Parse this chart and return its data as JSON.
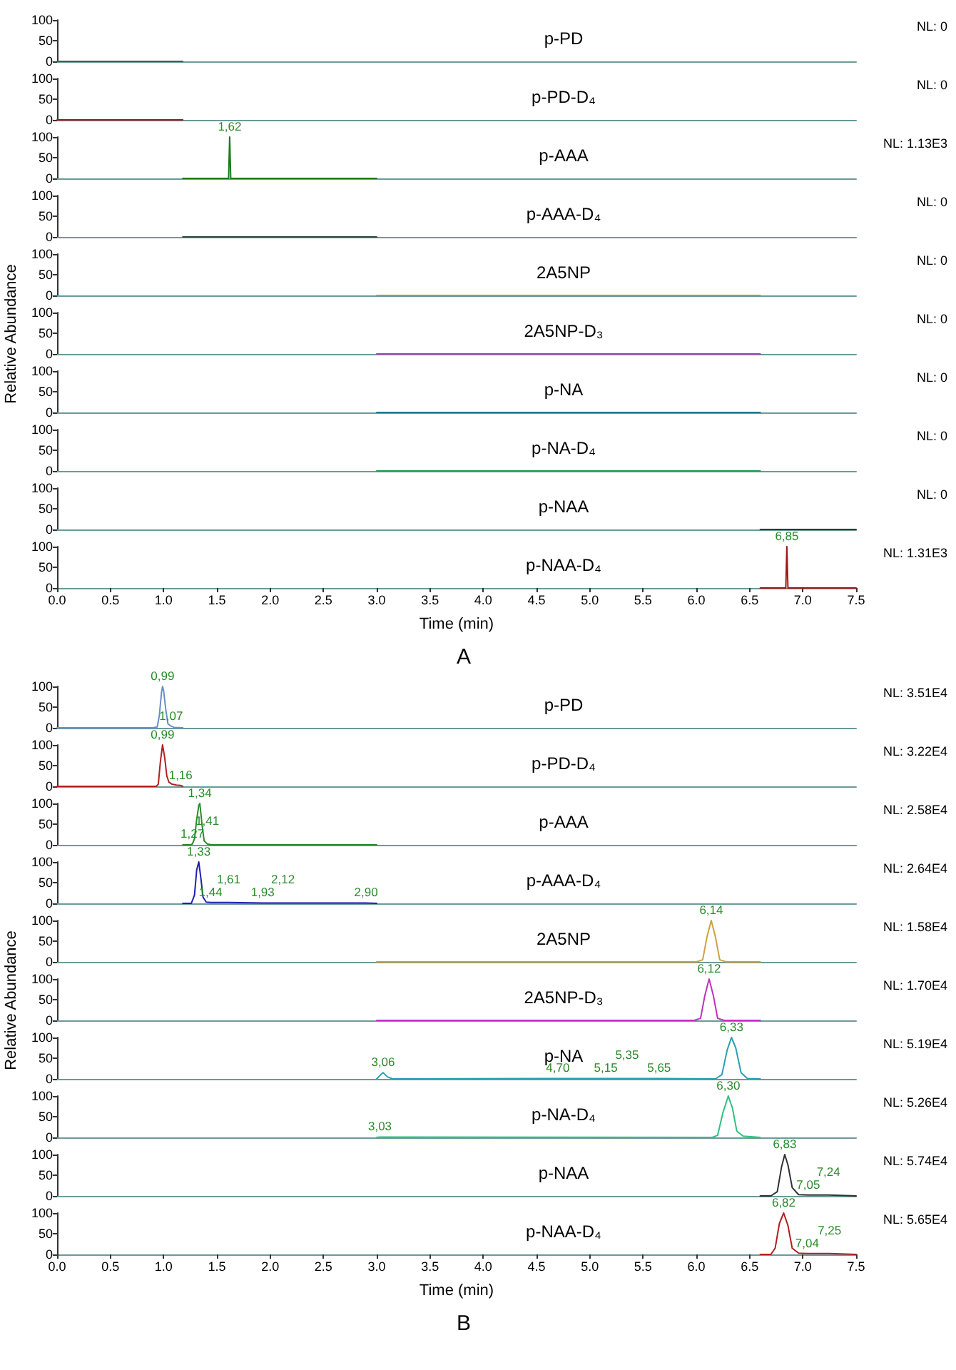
{
  "chart_data": [
    {
      "type": "line",
      "title": "p-PD",
      "x": [
        0,
        1.18
      ],
      "series": [
        {
          "color": "#555555",
          "values": [
            0,
            0
          ]
        }
      ],
      "xlim": [
        0,
        7.5
      ],
      "ylim": [
        0,
        100
      ],
      "yticks": [
        0,
        50,
        100
      ],
      "tick_labels": "y",
      "annotations": [
        "NL: 0"
      ]
    },
    {
      "type": "line",
      "title": "p-PD-D₄",
      "x": [
        0,
        1.18
      ],
      "series": [
        {
          "color": "#a01818",
          "values": [
            0,
            0
          ]
        }
      ],
      "xlim": [
        0,
        7.5
      ],
      "ylim": [
        0,
        100
      ],
      "yticks": [
        0,
        50,
        100
      ],
      "tick_labels": "y",
      "annotations": [
        "NL: 0"
      ]
    },
    {
      "type": "line",
      "title": "p-AAA",
      "x": [
        1.18,
        1.61,
        1.62,
        1.63,
        3.0
      ],
      "series": [
        {
          "color": "#1a7a1a",
          "values": [
            0,
            0,
            100,
            0,
            0
          ]
        }
      ],
      "xlim": [
        0,
        7.5
      ],
      "ylim": [
        0,
        100
      ],
      "yticks": [
        0,
        50,
        100
      ],
      "tick_labels": "y",
      "annotations": [
        "NL: 1.13E3",
        {
          "text": "1,62",
          "x": 1.62,
          "y": 100
        }
      ]
    },
    {
      "type": "line",
      "title": "p-AAA-D₄",
      "x": [
        1.18,
        3.0
      ],
      "series": [
        {
          "color": "#3a4a3a",
          "values": [
            0,
            0
          ]
        }
      ],
      "xlim": [
        0,
        7.5
      ],
      "ylim": [
        0,
        100
      ],
      "yticks": [
        0,
        50,
        100
      ],
      "tick_labels": "y",
      "annotations": [
        "NL: 0"
      ]
    },
    {
      "type": "line",
      "title": "2A5NP",
      "x": [
        3.0,
        6.6
      ],
      "series": [
        {
          "color": "#b8962e",
          "values": [
            0,
            0
          ]
        }
      ],
      "xlim": [
        0,
        7.5
      ],
      "ylim": [
        0,
        100
      ],
      "yticks": [
        0,
        50,
        100
      ],
      "tick_labels": "y",
      "annotations": [
        "NL: 0"
      ]
    },
    {
      "type": "line",
      "title": "2A5NP-D₃",
      "ylabel": "Relative Abundance",
      "x": [
        3.0,
        6.6
      ],
      "series": [
        {
          "color": "#b040b0",
          "values": [
            0,
            0
          ]
        }
      ],
      "xlim": [
        0,
        7.5
      ],
      "ylim": [
        0,
        100
      ],
      "yticks": [
        0,
        50,
        100
      ],
      "tick_labels": "y",
      "annotations": [
        "NL: 0"
      ]
    },
    {
      "type": "line",
      "title": "p-NA",
      "x": [
        3.0,
        6.6
      ],
      "series": [
        {
          "color": "#1a7a8a",
          "values": [
            0,
            0
          ]
        }
      ],
      "xlim": [
        0,
        7.5
      ],
      "ylim": [
        0,
        100
      ],
      "yticks": [
        0,
        50,
        100
      ],
      "tick_labels": "y",
      "annotations": [
        "NL: 0"
      ]
    },
    {
      "type": "line",
      "title": "p-NA-D₄",
      "x": [
        3.0,
        6.6
      ],
      "series": [
        {
          "color": "#20a050",
          "values": [
            0,
            0
          ]
        }
      ],
      "xlim": [
        0,
        7.5
      ],
      "ylim": [
        0,
        100
      ],
      "yticks": [
        0,
        50,
        100
      ],
      "tick_labels": "y",
      "annotations": [
        "NL: 0"
      ]
    },
    {
      "type": "line",
      "title": "p-NAA",
      "x": [
        6.6,
        7.5
      ],
      "series": [
        {
          "color": "#333333",
          "values": [
            0,
            0
          ]
        }
      ],
      "xlim": [
        0,
        7.5
      ],
      "ylim": [
        0,
        100
      ],
      "yticks": [
        0,
        50,
        100
      ],
      "tick_labels": "y",
      "annotations": [
        "NL: 0"
      ]
    },
    {
      "type": "line",
      "title": "p-NAA-D₄",
      "xlabel": "Time (min)",
      "x": [
        6.6,
        6.84,
        6.85,
        6.86,
        7.5
      ],
      "series": [
        {
          "color": "#a01818",
          "values": [
            0,
            0,
            100,
            0,
            0
          ]
        }
      ],
      "xlim": [
        0,
        7.5
      ],
      "ylim": [
        0,
        100
      ],
      "yticks": [
        0,
        50,
        100
      ],
      "xticks": [
        {
          "value": 0,
          "label": "0.0"
        },
        0.5,
        {
          "value": 1,
          "label": "1.0"
        },
        1.5,
        {
          "value": 2,
          "label": "2.0"
        },
        2.5,
        {
          "value": 3,
          "label": "3.0"
        },
        3.5,
        {
          "value": 4,
          "label": "4.0"
        },
        4.5,
        {
          "value": 5,
          "label": "5.0"
        },
        5.5,
        {
          "value": 6,
          "label": "6.0"
        },
        6.5,
        {
          "value": 7,
          "label": "7.0"
        },
        7.5
      ],
      "annotations": [
        "NL: 1.31E3",
        "A",
        {
          "text": "6,85",
          "x": 6.85,
          "y": 100
        }
      ]
    },
    {
      "type": "line",
      "title": "p-PD",
      "x": [
        0,
        0.9,
        0.94,
        0.96,
        0.98,
        0.99,
        1.0,
        1.02,
        1.04,
        1.07,
        1.1,
        1.18
      ],
      "series": [
        {
          "color": "#6a8ec8",
          "values": [
            0,
            0,
            2,
            30,
            85,
            100,
            90,
            45,
            10,
            4,
            1,
            0
          ]
        }
      ],
      "xlim": [
        0,
        7.5
      ],
      "ylim": [
        0,
        100
      ],
      "yticks": [
        0,
        50,
        100
      ],
      "tick_labels": "y",
      "annotations": [
        "NL: 3.51E4",
        {
          "text": "0,99",
          "x": 0.99,
          "y": 100
        },
        {
          "text": "1,07",
          "x": 1.07,
          "y": 4
        }
      ]
    },
    {
      "type": "line",
      "title": "p-PD-D₄",
      "x": [
        0,
        0.93,
        0.95,
        0.97,
        0.99,
        1.01,
        1.03,
        1.05,
        1.08,
        1.12,
        1.16,
        1.18
      ],
      "series": [
        {
          "color": "#b02020",
          "values": [
            0,
            0,
            5,
            60,
            100,
            70,
            25,
            10,
            5,
            3,
            2,
            0
          ]
        }
      ],
      "xlim": [
        0,
        7.5
      ],
      "ylim": [
        0,
        100
      ],
      "yticks": [
        0,
        50,
        100
      ],
      "tick_labels": "y",
      "annotations": [
        "NL: 3.22E4",
        {
          "text": "0,99",
          "x": 0.99,
          "y": 100
        },
        {
          "text": "1,16",
          "x": 1.16,
          "y": 2
        }
      ]
    },
    {
      "type": "line",
      "title": "p-AAA",
      "x": [
        1.18,
        1.25,
        1.27,
        1.29,
        1.31,
        1.33,
        1.34,
        1.36,
        1.38,
        1.41,
        1.45,
        3.0
      ],
      "series": [
        {
          "color": "#2a8a2a",
          "values": [
            0,
            0,
            2,
            15,
            60,
            95,
            100,
            50,
            10,
            2,
            0,
            0
          ]
        }
      ],
      "xlim": [
        0,
        7.5
      ],
      "ylim": [
        0,
        100
      ],
      "yticks": [
        0,
        50,
        100
      ],
      "tick_labels": "y",
      "annotations": [
        "NL: 2.58E4",
        {
          "text": "1,34",
          "x": 1.34,
          "y": 100
        },
        {
          "text": "1,27",
          "x": 1.27,
          "y": 2
        },
        {
          "text": "1,41",
          "x": 1.41,
          "y": 2
        }
      ]
    },
    {
      "type": "line",
      "title": "p-AAA-D₄",
      "x": [
        1.18,
        1.26,
        1.29,
        1.31,
        1.33,
        1.35,
        1.37,
        1.4,
        1.44,
        1.61,
        1.93,
        2.12,
        2.9,
        3.0
      ],
      "series": [
        {
          "color": "#2020b0",
          "values": [
            0,
            0,
            20,
            80,
            100,
            60,
            15,
            3,
            2,
            2,
            1,
            1,
            1,
            0
          ]
        }
      ],
      "xlim": [
        0,
        7.5
      ],
      "ylim": [
        0,
        100
      ],
      "yticks": [
        0,
        50,
        100
      ],
      "tick_labels": "y",
      "annotations": [
        "NL: 2.64E4",
        {
          "text": "1,33",
          "x": 1.33,
          "y": 100
        },
        {
          "text": "1,44",
          "x": 1.44,
          "y": 2
        },
        {
          "text": "1,61",
          "x": 1.61,
          "y": 2
        },
        {
          "text": "1,93",
          "x": 1.93,
          "y": 1
        },
        {
          "text": "2,12",
          "x": 2.12,
          "y": 1
        },
        {
          "text": "2,90",
          "x": 2.9,
          "y": 1
        }
      ]
    },
    {
      "type": "line",
      "title": "2A5NP",
      "x": [
        3.0,
        6.0,
        6.06,
        6.1,
        6.14,
        6.18,
        6.22,
        6.28,
        6.6
      ],
      "series": [
        {
          "color": "#d0a040",
          "values": [
            0,
            0,
            5,
            60,
            100,
            60,
            5,
            0,
            0
          ]
        }
      ],
      "xlim": [
        0,
        7.5
      ],
      "ylim": [
        0,
        100
      ],
      "yticks": [
        0,
        50,
        100
      ],
      "tick_labels": "y",
      "annotations": [
        "NL: 1.58E4",
        {
          "text": "6,14",
          "x": 6.14,
          "y": 100
        }
      ]
    },
    {
      "type": "line",
      "title": "2A5NP-D₃",
      "ylabel": "Relative Abundance",
      "x": [
        3.0,
        5.98,
        6.04,
        6.08,
        6.12,
        6.16,
        6.2,
        6.26,
        6.6
      ],
      "series": [
        {
          "color": "#c030c0",
          "values": [
            0,
            0,
            5,
            60,
            100,
            60,
            5,
            0,
            0
          ]
        }
      ],
      "xlim": [
        0,
        7.5
      ],
      "ylim": [
        0,
        100
      ],
      "yticks": [
        0,
        50,
        100
      ],
      "tick_labels": "y",
      "annotations": [
        "NL: 1.70E4",
        {
          "text": "6,12",
          "x": 6.12,
          "y": 100
        }
      ]
    },
    {
      "type": "line",
      "title": "p-NA",
      "x": [
        3.0,
        3.03,
        3.06,
        3.1,
        3.15,
        4.7,
        5.15,
        5.35,
        5.65,
        6.18,
        6.24,
        6.29,
        6.33,
        6.37,
        6.42,
        6.48,
        6.6
      ],
      "series": [
        {
          "color": "#2aa0b0",
          "values": [
            0,
            8,
            15,
            5,
            0,
            1,
            1,
            1,
            1,
            0,
            10,
            70,
            100,
            75,
            15,
            1,
            0
          ]
        }
      ],
      "xlim": [
        0,
        7.5
      ],
      "ylim": [
        0,
        100
      ],
      "yticks": [
        0,
        50,
        100
      ],
      "tick_labels": "y",
      "annotations": [
        "NL: 5.19E4",
        {
          "text": "6,33",
          "x": 6.33,
          "y": 100
        },
        {
          "text": "3,06",
          "x": 3.06,
          "y": 15
        },
        {
          "text": "4,70",
          "x": 4.7,
          "y": 1
        },
        {
          "text": "5,15",
          "x": 5.15,
          "y": 1
        },
        {
          "text": "5,35",
          "x": 5.35,
          "y": 1
        },
        {
          "text": "5,65",
          "x": 5.65,
          "y": 1
        }
      ]
    },
    {
      "type": "line",
      "title": "p-NA-D₄",
      "x": [
        3.0,
        3.03,
        6.15,
        6.2,
        6.25,
        6.3,
        6.34,
        6.38,
        6.44,
        6.6
      ],
      "series": [
        {
          "color": "#30c080",
          "values": [
            0,
            1,
            0,
            5,
            60,
            100,
            70,
            15,
            3,
            0
          ]
        }
      ],
      "xlim": [
        0,
        7.5
      ],
      "ylim": [
        0,
        100
      ],
      "yticks": [
        0,
        50,
        100
      ],
      "tick_labels": "y",
      "annotations": [
        "NL: 5.26E4",
        {
          "text": "6,30",
          "x": 6.3,
          "y": 100
        },
        {
          "text": "3,03",
          "x": 3.03,
          "y": 1
        }
      ]
    },
    {
      "type": "line",
      "title": "p-NAA",
      "x": [
        6.6,
        6.7,
        6.76,
        6.8,
        6.83,
        6.86,
        6.9,
        6.96,
        7.05,
        7.24,
        7.5
      ],
      "series": [
        {
          "color": "#333333",
          "values": [
            0,
            0,
            10,
            70,
            100,
            75,
            20,
            3,
            2,
            2,
            0
          ]
        }
      ],
      "xlim": [
        0,
        7.5
      ],
      "ylim": [
        0,
        100
      ],
      "yticks": [
        0,
        50,
        100
      ],
      "tick_labels": "y",
      "annotations": [
        "NL: 5.74E4",
        {
          "text": "6,83",
          "x": 6.83,
          "y": 100
        },
        {
          "text": "7,05",
          "x": 7.05,
          "y": 2
        },
        {
          "text": "7,24",
          "x": 7.24,
          "y": 2
        }
      ]
    },
    {
      "type": "line",
      "title": "p-NAA-D₄",
      "xlabel": "Time (min)",
      "x": [
        6.6,
        6.7,
        6.74,
        6.78,
        6.82,
        6.86,
        6.9,
        6.96,
        7.04,
        7.25,
        7.5
      ],
      "series": [
        {
          "color": "#b02020",
          "values": [
            0,
            0,
            15,
            75,
            100,
            70,
            15,
            3,
            2,
            2,
            0
          ]
        }
      ],
      "xlim": [
        0,
        7.5
      ],
      "ylim": [
        0,
        100
      ],
      "yticks": [
        0,
        50,
        100
      ],
      "xticks": [
        {
          "value": 0,
          "label": "0.0"
        },
        0.5,
        {
          "value": 1,
          "label": "1.0"
        },
        1.5,
        {
          "value": 2,
          "label": "2.0"
        },
        2.5,
        {
          "value": 3,
          "label": "3.0"
        },
        3.5,
        {
          "value": 4,
          "label": "4.0"
        },
        4.5,
        {
          "value": 5,
          "label": "5.0"
        },
        5.5,
        {
          "value": 6,
          "label": "6.0"
        },
        6.5,
        {
          "value": 7,
          "label": "7.0"
        },
        7.5
      ],
      "annotations": [
        "NL: 5.65E4",
        "B",
        {
          "text": "6,82",
          "x": 6.82,
          "y": 100
        },
        {
          "text": "7,04",
          "x": 7.04,
          "y": 2
        },
        {
          "text": "7,25",
          "x": 7.25,
          "y": 2
        }
      ]
    }
  ]
}
